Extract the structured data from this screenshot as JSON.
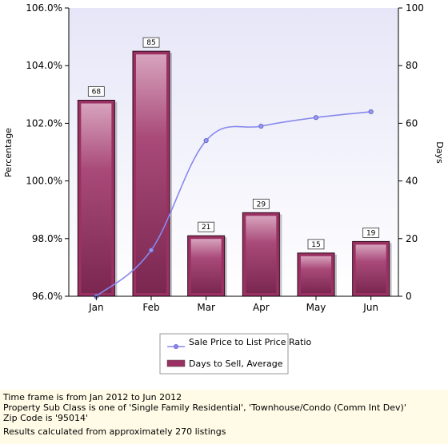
{
  "chart_data": {
    "type": "bar",
    "categories": [
      "Jan",
      "Feb",
      "Mar",
      "Apr",
      "May",
      "Jun"
    ],
    "series": [
      {
        "name": "Days to Sell, Average",
        "type": "bar",
        "axis": "right",
        "values": [
          68,
          85,
          21,
          29,
          15,
          19
        ],
        "color": "#9b3163"
      },
      {
        "name": "Sale Price to List Price Ratio",
        "type": "line",
        "axis": "left",
        "values": [
          96.0,
          97.6,
          101.4,
          101.9,
          102.2,
          102.4
        ],
        "color": "#8888ee"
      }
    ],
    "ylabel": "Percentage",
    "y2label": "Days",
    "ylim": [
      96.0,
      106.0
    ],
    "y2lim": [
      0,
      100
    ],
    "yticks": [
      "96.0%",
      "98.0%",
      "100.0%",
      "102.0%",
      "104.0%",
      "106.0%"
    ],
    "y2ticks": [
      "0",
      "20",
      "40",
      "60",
      "80",
      "100"
    ],
    "grid": false,
    "legend_position": "bottom-center"
  },
  "footer": {
    "line1": "Time frame is from Jan 2012 to Jun 2012",
    "line2": "Property Sub Class is one of 'Single Family Residential', 'Townhouse/Condo (Comm Int Dev)'",
    "line3": "Zip Code is '95014'",
    "line4": "Results calculated from approximately 270 listings"
  }
}
